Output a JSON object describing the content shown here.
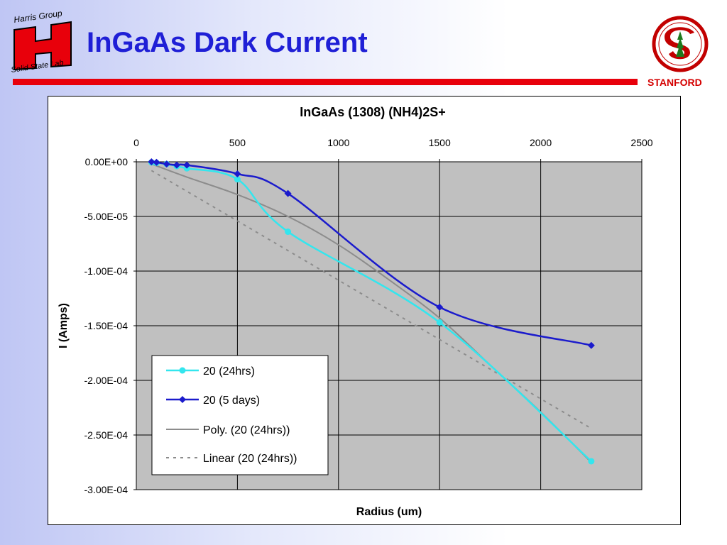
{
  "slide": {
    "title": "InGaAs Dark Current",
    "stanford_label": "STANFORD",
    "logo_left_text_top": "Harris Group",
    "logo_left_text_bottom": "Solid State Lab"
  },
  "colors": {
    "title": "#1f1fd6",
    "rule": "#e8000b",
    "plot_area": "#c0c0c0",
    "series_24hrs": "#33e6ee",
    "series_5days": "#1b1bcc",
    "poly_trend": "#8c8c8c",
    "linear_trend": "#8c8c8c"
  },
  "chart_data": {
    "type": "scatter",
    "title": "InGaAs (1308) (NH4)2S+",
    "xlabel": "Radius (um)",
    "ylabel": "I (Amps)",
    "xlim": [
      0,
      2500
    ],
    "ylim": [
      -0.0003,
      0
    ],
    "x_ticks": [
      0,
      500,
      1000,
      1500,
      2000,
      2500
    ],
    "x_tick_labels": [
      "0",
      "500",
      "1000",
      "1500",
      "2000",
      "2500"
    ],
    "y_ticks": [
      0,
      -5e-05,
      -0.0001,
      -0.00015,
      -0.0002,
      -0.00025,
      -0.0003
    ],
    "y_tick_labels": [
      "0.00E+00",
      "-5.00E-05",
      "-1.00E-04",
      "-1.50E-04",
      "-2.00E-04",
      "-2.50E-04",
      "-3.00E-04"
    ],
    "x_axis_position": "top",
    "grid": true,
    "legend_position": "lower-left",
    "series": [
      {
        "name": "20 (24hrs)",
        "marker": "circle",
        "color": "#33e6ee",
        "x": [
          75,
          100,
          150,
          200,
          250,
          500,
          750,
          1500,
          2250
        ],
        "y": [
          -5e-07,
          -1e-06,
          -2e-06,
          -4e-06,
          -6e-06,
          -1.6e-05,
          -6.4e-05,
          -0.000147,
          -0.000274
        ]
      },
      {
        "name": "20 (5 days)",
        "marker": "diamond",
        "color": "#1b1bcc",
        "x": [
          75,
          100,
          150,
          200,
          250,
          500,
          750,
          1500,
          2250
        ],
        "y": [
          0,
          -5e-07,
          -2e-06,
          -3e-06,
          -3e-06,
          -1.1e-05,
          -2.9e-05,
          -0.000133,
          -0.000168
        ]
      },
      {
        "name": "Poly. (20 (24hrs))",
        "style": "solid-trendline",
        "color": "#8c8c8c",
        "x": [
          75,
          250,
          500,
          750,
          1000,
          1250,
          1500,
          1750,
          2000,
          2250
        ],
        "y": [
          -2e-06,
          -1.4e-05,
          -3e-05,
          -5e-05,
          -7.6e-05,
          -0.000108,
          -0.000143,
          -0.000186,
          -0.000229,
          -0.000275
        ]
      },
      {
        "name": "Linear (20 (24hrs))",
        "style": "dashed-trendline",
        "color": "#8c8c8c",
        "x": [
          75,
          2250
        ],
        "y": [
          -8e-06,
          -0.000244
        ]
      }
    ]
  }
}
